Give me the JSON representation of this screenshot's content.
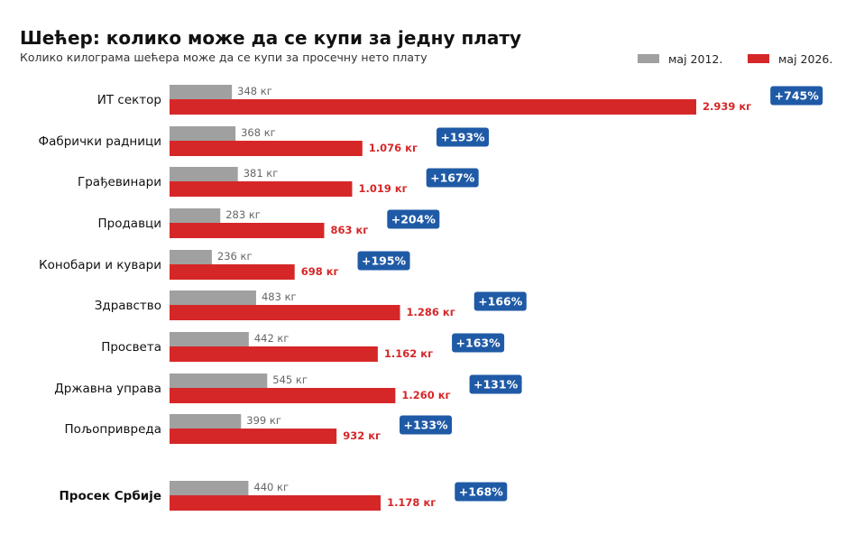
{
  "header": {
    "title": "Шећер: колико може да се купи за једну плату",
    "subtitle": "Колико килограма шећера може да се купи за просечну нето плату"
  },
  "colors": {
    "series_2012": "#a0a0a0",
    "series_2026": "#d62728",
    "badge": "#1f5aa6"
  },
  "chart_data": {
    "type": "bar",
    "orientation": "horizontal",
    "unit": "кг",
    "categories": [
      "ИТ сектор",
      "Фабрички радници",
      "Грађевинари",
      "Продавци",
      "Конобари и кувари",
      "Здравство",
      "Просвета",
      "Државна управа",
      "Пољопривреда",
      "Просек Србије"
    ],
    "series": [
      {
        "name": "мај 2012.",
        "values": [
          348,
          368,
          381,
          283,
          236,
          483,
          442,
          545,
          399,
          440
        ],
        "labels": [
          "348 кг",
          "368 кг",
          "381 кг",
          "283 кг",
          "236 кг",
          "483 кг",
          "442 кг",
          "545 кг",
          "399 кг",
          "440 кг"
        ]
      },
      {
        "name": "мај 2026.",
        "values": [
          2939,
          1076,
          1019,
          863,
          698,
          1286,
          1162,
          1260,
          932,
          1178
        ],
        "labels": [
          "2.939 кг",
          "1.076 кг",
          "1.019 кг",
          "863 кг",
          "698 кг",
          "1.286 кг",
          "1.162 кг",
          "1.260 кг",
          "932 кг",
          "1.178 кг"
        ]
      }
    ],
    "change_labels": [
      "+745%",
      "+193%",
      "+167%",
      "+204%",
      "+195%",
      "+166%",
      "+163%",
      "+131%",
      "+133%",
      "+168%"
    ],
    "highlight_category": "Просек Србије",
    "legend_position": "top-right",
    "grid": false
  }
}
